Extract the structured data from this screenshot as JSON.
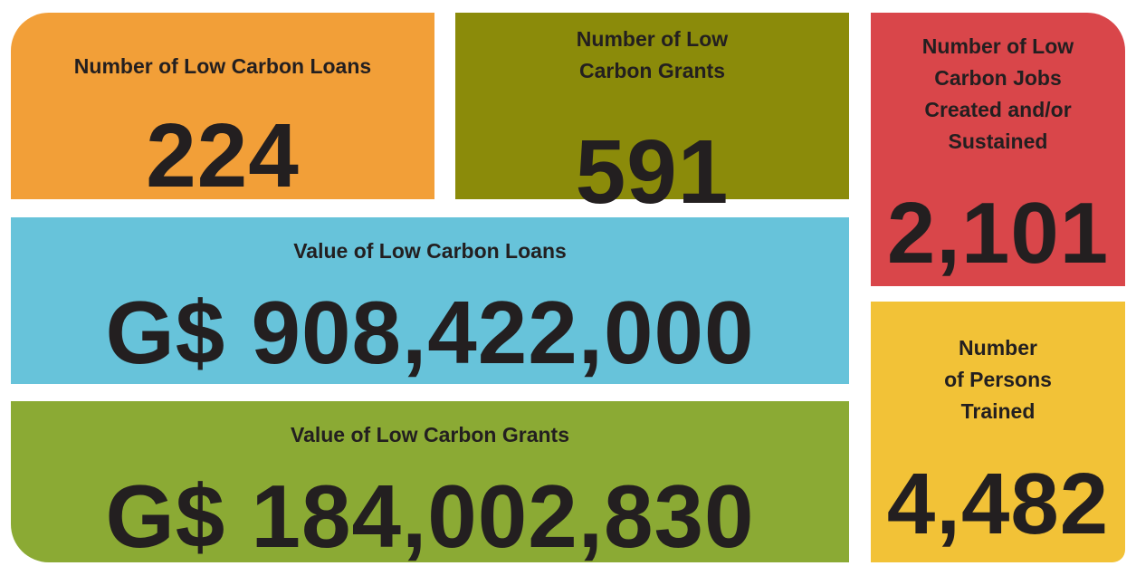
{
  "tiles": [
    {
      "label": [
        "Number of Low Carbon Loans"
      ],
      "value": "224"
    },
    {
      "label": [
        "Number of Low",
        "Carbon Grants"
      ],
      "value": "591"
    },
    {
      "label": [
        "Number of Low",
        "Carbon Jobs",
        "Created and/or",
        "Sustained"
      ],
      "value": "2,101"
    },
    {
      "label": [
        "Value of Low Carbon Loans"
      ],
      "value": "G$ 908,422,000"
    },
    {
      "label": [
        "Value of Low Carbon Grants"
      ],
      "value": "G$ 184,002,830"
    },
    {
      "label": [
        "Number",
        "of Persons",
        "Trained"
      ],
      "value": "4,482"
    }
  ]
}
